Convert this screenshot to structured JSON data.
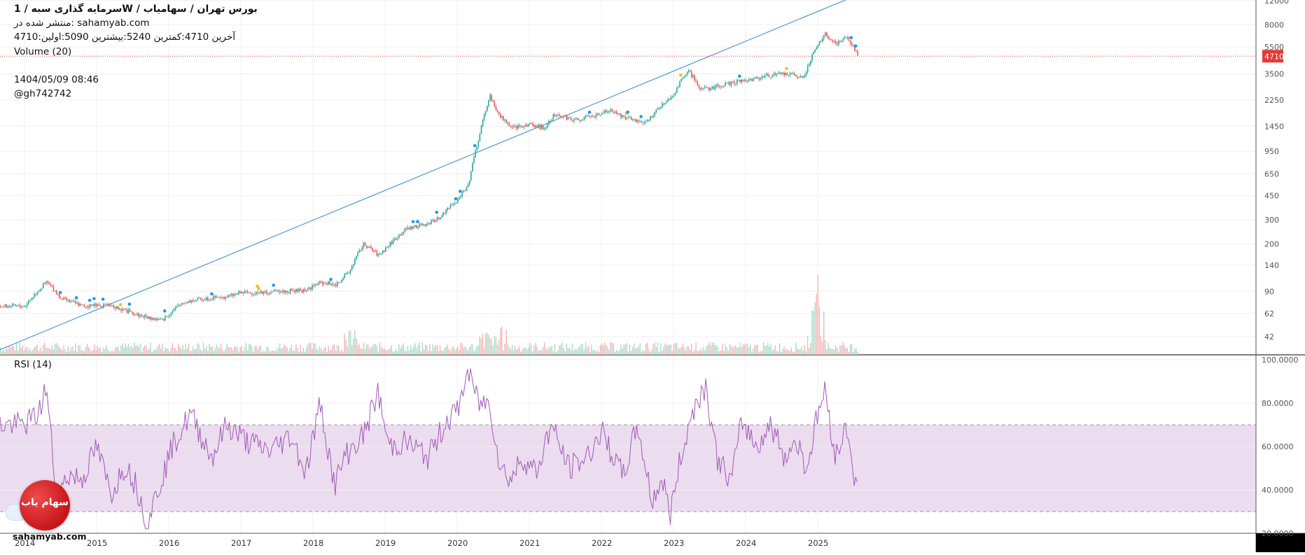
{
  "header": {
    "title_line": "سرمایه گذاری  سبه  /  1W  /  بورس تهران / سهامیاب",
    "published_line": "منتشر شده در: sahamyab.com",
    "ohlc_line": " 4710:آخرین  4710:کمترین  5240:بیشترین  5090:اولین",
    "volume_line": "Volume (20)",
    "date_line": "1404/05/09 08:46",
    "user_line": "@gh742742"
  },
  "rsi_label": "RSI (14)",
  "last_price_label": "4710",
  "brand": {
    "badge_text": "سهام یاب",
    "url": "sahamyab.com"
  },
  "colors": {
    "up": "#26a69a",
    "down": "#ef5350",
    "trend": "#4a9ad4",
    "rsi": "#a05ab8",
    "rsi_band": "#ecdcef",
    "last_price": "#e53935"
  },
  "chart_data": [
    {
      "type": "line",
      "title": "سرمایه گذاری سبه 1W",
      "scale": "log",
      "x_ticks": [
        "2014",
        "2015",
        "2016",
        "2017",
        "2018",
        "2019",
        "2020",
        "2021",
        "2022",
        "2023",
        "2024",
        "2025"
      ],
      "y_ticks": [
        "12000",
        "8000",
        "5500",
        "3500",
        "2250",
        "1450",
        "950",
        "650",
        "450",
        "300",
        "200",
        "140",
        "90",
        "62",
        "42"
      ],
      "last_price": 4710,
      "trendline": {
        "x": [
          2014.0,
          2025.0
        ],
        "y": [
          40,
          10000
        ]
      },
      "series": [
        {
          "x": [
            2014.0,
            2014.3,
            2014.5,
            2014.8,
            2015.0,
            2015.3,
            2015.5,
            2015.7,
            2015.9,
            2016.2,
            2016.5,
            2016.8,
            2017.0,
            2017.3,
            2017.6,
            2017.9,
            2018.1,
            2018.3,
            2018.5,
            2018.7,
            2018.9,
            2019.0,
            2019.3,
            2019.6,
            2019.8,
            2020.0,
            2020.15,
            2020.3,
            2020.45,
            2020.55,
            2020.75,
            2021.0,
            2021.2,
            2021.35,
            2021.6,
            2021.85,
            2022.1,
            2022.3,
            2022.6,
            2022.85,
            2023.0,
            2023.2,
            2023.35,
            2023.45,
            2023.7,
            2023.9,
            2024.1,
            2024.3,
            2024.55,
            2024.8,
            2024.95,
            2025.1,
            2025.25,
            2025.4,
            2025.55
          ],
          "y": [
            70,
            105,
            80,
            70,
            72,
            68,
            62,
            58,
            55,
            75,
            80,
            82,
            88,
            88,
            90,
            92,
            105,
            100,
            125,
            200,
            165,
            185,
            260,
            280,
            330,
            420,
            540,
            1200,
            2400,
            1800,
            1400,
            1500,
            1400,
            1800,
            1600,
            1700,
            1900,
            1700,
            1500,
            2100,
            2500,
            3700,
            2800,
            2700,
            2900,
            3100,
            3200,
            3400,
            3500,
            3300,
            5200,
            6800,
            5800,
            6500,
            4710
          ]
        }
      ]
    },
    {
      "type": "bar",
      "title": "Volume (20)"
    },
    {
      "type": "line",
      "title": "RSI (14)",
      "ylim": [
        20,
        100
      ],
      "y_ticks": [
        "100.0000",
        "80.0000",
        "60.0000",
        "40.0000",
        "20.0000"
      ],
      "bands": [
        30,
        70
      ],
      "series": [
        {
          "x": [
            2014.0,
            2014.2,
            2014.3,
            2014.45,
            2014.6,
            2014.8,
            2015.0,
            2015.2,
            2015.4,
            2015.55,
            2015.7,
            2015.9,
            2016.05,
            2016.3,
            2016.6,
            2016.8,
            2017.1,
            2017.4,
            2017.7,
            2017.9,
            2018.1,
            2018.3,
            2018.45,
            2018.7,
            2018.9,
            2019.05,
            2019.3,
            2019.6,
            2019.85,
            2020.0,
            2020.15,
            2020.3,
            2020.45,
            2020.6,
            2020.75,
            2020.9,
            2021.1,
            2021.3,
            2021.55,
            2021.8,
            2022.0,
            2022.3,
            2022.5,
            2022.7,
            2022.85,
            2022.95,
            2023.1,
            2023.3,
            2023.45,
            2023.6,
            2023.8,
            2023.95,
            2024.15,
            2024.35,
            2024.55,
            2024.7,
            2024.85,
            2025.0,
            2025.1,
            2025.25,
            2025.4,
            2025.55
          ],
          "y": [
            70,
            75,
            88,
            35,
            47,
            45,
            60,
            38,
            52,
            42,
            25,
            45,
            60,
            75,
            55,
            70,
            62,
            58,
            65,
            48,
            80,
            42,
            56,
            65,
            85,
            60,
            62,
            55,
            72,
            76,
            95,
            80,
            80,
            50,
            45,
            55,
            48,
            70,
            50,
            55,
            67,
            46,
            70,
            35,
            45,
            28,
            55,
            80,
            88,
            55,
            44,
            72,
            60,
            70,
            55,
            63,
            50,
            75,
            86,
            55,
            70,
            38
          ]
        }
      ]
    }
  ]
}
